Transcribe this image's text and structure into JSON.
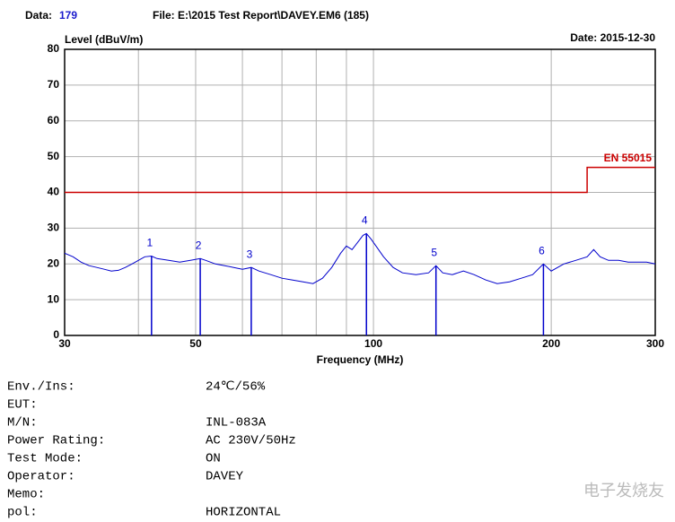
{
  "header": {
    "data_label": "Data:",
    "data_value": "179",
    "file": "File: E:\\2015 Test Report\\DAVEY.EM6  (185)",
    "date": "Date: 2015-12-30"
  },
  "chart_data": {
    "type": "line",
    "y_label": "Level (dBuV/m)",
    "x_label": "Frequency (MHz)",
    "log_x": true,
    "grid": true,
    "xlim": [
      30,
      300
    ],
    "ylim": [
      0,
      80
    ],
    "xticks": [
      30,
      50,
      100,
      200,
      300
    ],
    "xminor": [
      40,
      60,
      70,
      80,
      90
    ],
    "yticks": [
      0,
      10,
      20,
      30,
      40,
      50,
      60,
      70,
      80
    ],
    "series": [
      {
        "color": "#0000cc",
        "x": [
          30,
          31,
          32,
          33,
          34,
          35,
          36,
          37,
          38,
          39,
          40,
          41,
          42.1,
          43,
          45,
          47,
          49,
          50.9,
          52,
          54,
          56,
          58,
          60,
          62.1,
          64,
          67,
          70,
          73,
          76,
          79,
          82,
          85,
          88,
          90,
          92,
          94,
          96,
          97.3,
          99,
          101,
          104,
          108,
          112,
          118,
          124,
          127.6,
          131,
          136,
          142,
          148,
          155,
          162,
          170,
          178,
          186,
          194,
          200,
          210,
          220,
          230,
          236,
          242,
          250,
          260,
          270,
          280,
          290,
          300
        ],
        "values": [
          23,
          22,
          20.5,
          19.5,
          19,
          18.5,
          18,
          18.2,
          19,
          20,
          21,
          22,
          22.2,
          21.5,
          21,
          20.5,
          21,
          21.5,
          21,
          20,
          19.5,
          19,
          18.5,
          19,
          18,
          17,
          16,
          15.5,
          15,
          14.5,
          16,
          19,
          23,
          25,
          24,
          26,
          28,
          28.5,
          27,
          25,
          22,
          19,
          17.5,
          17,
          17.5,
          19.5,
          17.5,
          17,
          18,
          17,
          15.5,
          14.5,
          15,
          16,
          17,
          20,
          18,
          20,
          21,
          22,
          24,
          22,
          21,
          21,
          20.5,
          20.5,
          20.5,
          20
        ]
      },
      {
        "name": "EN 55015",
        "color": "#cc0000",
        "x": [
          30,
          230,
          230,
          300
        ],
        "values": [
          40,
          40,
          47,
          47
        ]
      }
    ],
    "markers": [
      {
        "label": "1",
        "x": 42.1,
        "value": 22.2
      },
      {
        "label": "2",
        "x": 50.9,
        "value": 21.5
      },
      {
        "label": "3",
        "x": 62.1,
        "value": 19
      },
      {
        "label": "4",
        "x": 97.3,
        "value": 28.5
      },
      {
        "label": "5",
        "x": 127.6,
        "value": 19.5
      },
      {
        "label": "6",
        "x": 194,
        "value": 20
      }
    ]
  },
  "info": {
    "rows": [
      [
        "Env./Ins:",
        "24℃/56%"
      ],
      [
        "EUT:"
      ],
      [
        "M/N:",
        "INL-083A"
      ],
      [
        "Power Rating:",
        "AC 230V/50Hz"
      ],
      [
        "Test Mode:",
        "ON"
      ],
      [
        "Operator:",
        "DAVEY"
      ],
      [
        "Memo:"
      ],
      [
        "pol:",
        "HORIZONTAL"
      ]
    ]
  },
  "watermark": "电子发烧友"
}
